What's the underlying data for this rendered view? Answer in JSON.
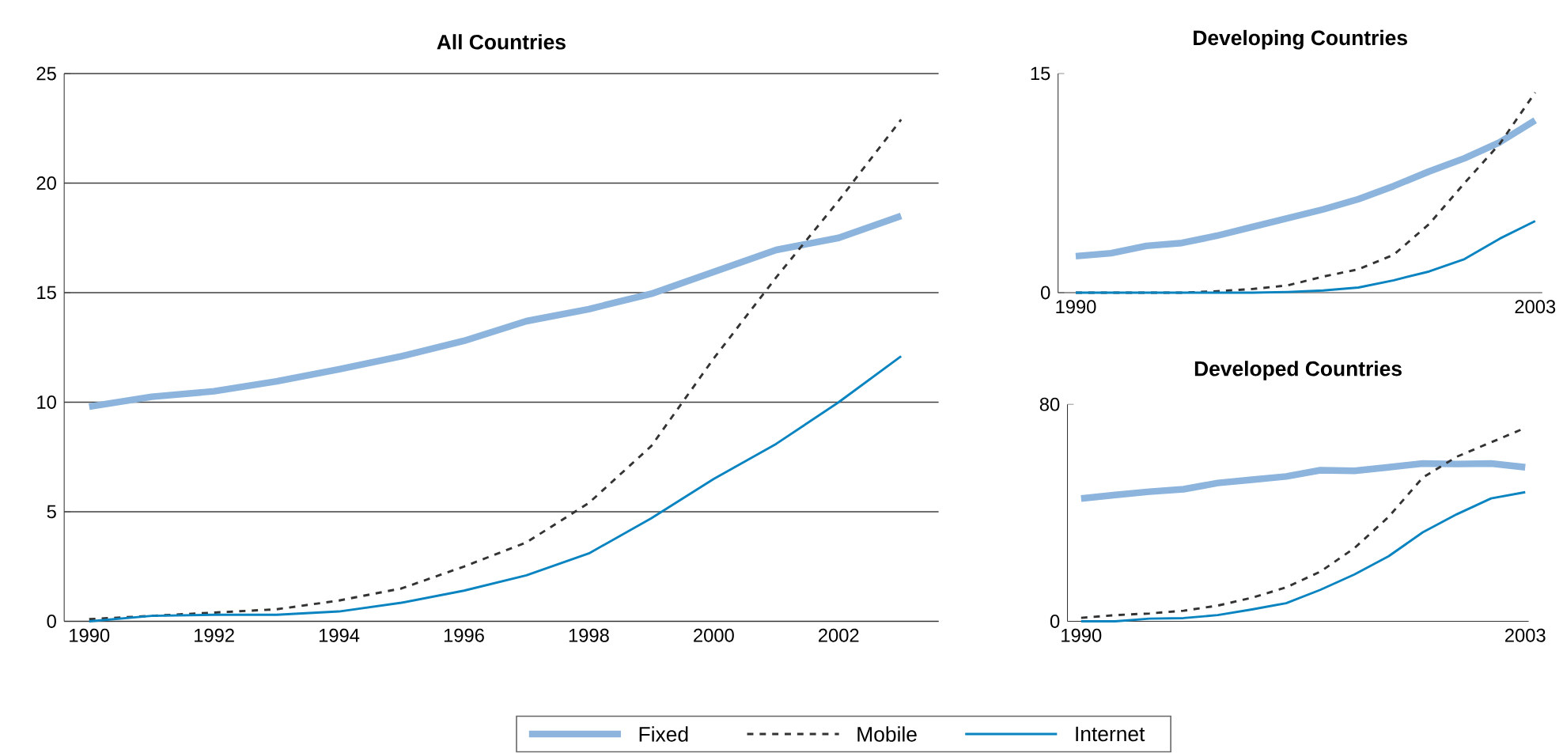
{
  "chart_data": [
    {
      "type": "line",
      "title": "All Countries",
      "x": [
        1990,
        1991,
        1992,
        1993,
        1994,
        1995,
        1996,
        1997,
        1998,
        1999,
        2000,
        2001,
        2002,
        2003
      ],
      "xlim": [
        1989.6,
        2003.6
      ],
      "ylim": [
        0,
        25
      ],
      "xticks": [
        1990,
        1992,
        1994,
        1996,
        1998,
        2000,
        2002
      ],
      "yticks": [
        0,
        5,
        10,
        15,
        20,
        25
      ],
      "grid": "y",
      "legend": "bottom",
      "series": [
        {
          "name": "Fixed",
          "color": "#8cb4dc",
          "line_style": "solid",
          "values": [
            9.8,
            10.25,
            10.5,
            10.95,
            11.5,
            12.1,
            12.8,
            13.7,
            14.25,
            14.95,
            15.95,
            16.95,
            17.5,
            18.5
          ]
        },
        {
          "name": "Mobile",
          "color": "#333333",
          "line_style": "dashed",
          "values": [
            0.1,
            0.25,
            0.4,
            0.55,
            0.95,
            1.5,
            2.5,
            3.6,
            5.4,
            8.0,
            12.0,
            15.7,
            19.2,
            22.9
          ]
        },
        {
          "name": "Internet",
          "color": "#0a84c0",
          "line_style": "solid",
          "values": [
            0,
            0.25,
            0.3,
            0.3,
            0.45,
            0.85,
            1.4,
            2.1,
            3.1,
            4.7,
            6.5,
            8.1,
            10.0,
            12.1
          ]
        }
      ]
    },
    {
      "type": "line",
      "title": "Developing Countries",
      "x": [
        1990,
        1991,
        1992,
        1993,
        1994,
        1995,
        1996,
        1997,
        1998,
        1999,
        2000,
        2001,
        2002,
        2003
      ],
      "xlim": [
        1989.5,
        2003.2
      ],
      "ylim": [
        0,
        15
      ],
      "xticks": [
        1990,
        2003
      ],
      "yticks": [
        0,
        15
      ],
      "series": [
        {
          "color": "#8cb4dc",
          "line_style": "solid",
          "values": [
            2.5,
            2.7,
            3.2,
            3.4,
            3.9,
            4.5,
            5.1,
            5.7,
            6.4,
            7.3,
            8.3,
            9.2,
            10.3,
            11.8
          ]
        },
        {
          "color": "#333333",
          "line_style": "dashed",
          "values": [
            0,
            0,
            0,
            0,
            0.1,
            0.25,
            0.5,
            1.1,
            1.6,
            2.6,
            4.7,
            7.5,
            10.2,
            13.7
          ]
        },
        {
          "color": "#0a84c0",
          "line_style": "solid",
          "values": [
            0,
            0,
            0,
            0,
            0,
            0,
            0.05,
            0.15,
            0.35,
            0.85,
            1.45,
            2.3,
            3.7,
            4.9
          ]
        }
      ]
    },
    {
      "type": "line",
      "title": "Developed Countries",
      "x": [
        1990,
        1991,
        1992,
        1993,
        1994,
        1995,
        1996,
        1997,
        1998,
        1999,
        2000,
        2001,
        2002,
        2003
      ],
      "xlim": [
        1989.6,
        2003.1
      ],
      "ylim": [
        0,
        80
      ],
      "xticks": [
        1990,
        2003
      ],
      "yticks": [
        0,
        80
      ],
      "series": [
        {
          "color": "#8cb4dc",
          "line_style": "solid",
          "values": [
            45.3,
            46.6,
            47.8,
            48.7,
            51,
            52.2,
            53.4,
            55.7,
            55.5,
            56.8,
            58.2,
            58,
            58.2,
            56.8
          ]
        },
        {
          "color": "#333333",
          "line_style": "dashed",
          "values": [
            1.3,
            2.3,
            2.9,
            3.9,
            5.8,
            8.7,
            12.5,
            18.3,
            27,
            38.5,
            53,
            60.7,
            66,
            71.3
          ]
        },
        {
          "color": "#0a84c0",
          "line_style": "solid",
          "values": [
            0,
            0,
            1,
            1.2,
            2.3,
            4.4,
            6.7,
            11.6,
            17.3,
            24,
            32.8,
            39.5,
            45.3,
            47.6
          ]
        }
      ]
    }
  ]
}
